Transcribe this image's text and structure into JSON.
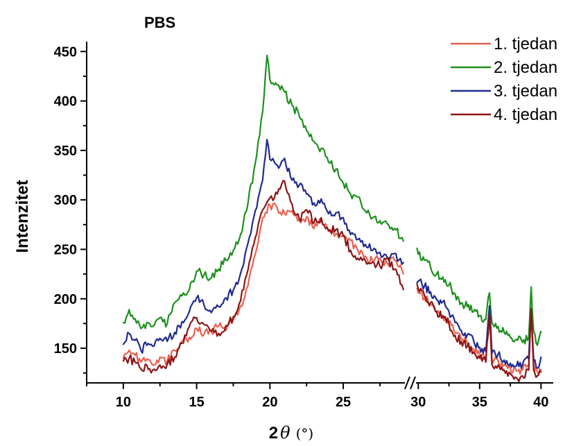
{
  "chart_data": {
    "type": "line",
    "title": "PBS",
    "xlabel_main": "2",
    "xlabel_theta": "θ",
    "xlabel_unit": "(°)",
    "ylabel": "Intenzitet",
    "ylim": [
      115,
      460
    ],
    "x_segments": [
      {
        "range": [
          7.5,
          29.3
        ],
        "ticks": [
          10,
          15,
          20,
          25
        ]
      },
      {
        "range": [
          29.7,
          41
        ],
        "ticks": [
          30,
          35,
          40
        ]
      }
    ],
    "x_ticks": [
      "10",
      "15",
      "20",
      "25",
      "30",
      "35",
      "40"
    ],
    "y_ticks": [
      "150",
      "200",
      "250",
      "300",
      "350",
      "400",
      "450"
    ],
    "axis_break_after": 29.1,
    "legend_position": "top-right",
    "series": [
      {
        "name": "1. tjedan",
        "color": "#e8604f",
        "points": [
          [
            10,
            140
          ],
          [
            10.4,
            148
          ],
          [
            10.8,
            143
          ],
          [
            11.2,
            136
          ],
          [
            11.6,
            139
          ],
          [
            12,
            133
          ],
          [
            12.5,
            141
          ],
          [
            13,
            137
          ],
          [
            13.5,
            148
          ],
          [
            14,
            157
          ],
          [
            14.5,
            161
          ],
          [
            15,
            170
          ],
          [
            15.5,
            164
          ],
          [
            16,
            167
          ],
          [
            16.5,
            172
          ],
          [
            17,
            168
          ],
          [
            17.5,
            179
          ],
          [
            18,
            193
          ],
          [
            18.5,
            213
          ],
          [
            19,
            245
          ],
          [
            19.5,
            282
          ],
          [
            20,
            295
          ],
          [
            20.5,
            292
          ],
          [
            21,
            286
          ],
          [
            21.5,
            289
          ],
          [
            22,
            280
          ],
          [
            22.5,
            283
          ],
          [
            23,
            271
          ],
          [
            23.5,
            279
          ],
          [
            24,
            268
          ],
          [
            24.5,
            266
          ],
          [
            25,
            263
          ],
          [
            25.5,
            259
          ],
          [
            26,
            249
          ],
          [
            26.5,
            243
          ],
          [
            27,
            238
          ],
          [
            27.5,
            241
          ],
          [
            28,
            236
          ],
          [
            28.5,
            239
          ],
          [
            29,
            229
          ],
          [
            30,
            206
          ],
          [
            30.5,
            201
          ],
          [
            31,
            194
          ],
          [
            31.5,
            186
          ],
          [
            32,
            181
          ],
          [
            32.5,
            177
          ],
          [
            33,
            165
          ],
          [
            33.5,
            159
          ],
          [
            34,
            155
          ],
          [
            34.5,
            149
          ],
          [
            35,
            144
          ],
          [
            35.5,
            139
          ],
          [
            35.8,
            183
          ],
          [
            36,
            139
          ],
          [
            36.5,
            138
          ],
          [
            37,
            133
          ],
          [
            37.5,
            130
          ],
          [
            38,
            127
          ],
          [
            38.5,
            128
          ],
          [
            39,
            132
          ],
          [
            39.2,
            185
          ],
          [
            39.4,
            134
          ],
          [
            39.7,
            126
          ],
          [
            40,
            128
          ]
        ]
      },
      {
        "name": "2. tjedan",
        "color": "#1d8f1d",
        "points": [
          [
            10,
            176
          ],
          [
            10.4,
            189
          ],
          [
            10.8,
            180
          ],
          [
            11.2,
            170
          ],
          [
            11.6,
            176
          ],
          [
            12,
            172
          ],
          [
            12.5,
            181
          ],
          [
            13,
            175
          ],
          [
            13.5,
            196
          ],
          [
            14,
            203
          ],
          [
            14.5,
            209
          ],
          [
            15,
            228
          ],
          [
            15.5,
            224
          ],
          [
            16,
            221
          ],
          [
            16.5,
            230
          ],
          [
            17,
            239
          ],
          [
            17.5,
            249
          ],
          [
            18,
            265
          ],
          [
            18.5,
            296
          ],
          [
            19,
            337
          ],
          [
            19.5,
            389
          ],
          [
            19.8,
            446
          ],
          [
            20,
            421
          ],
          [
            20.5,
            416
          ],
          [
            21,
            409
          ],
          [
            21.5,
            396
          ],
          [
            22,
            385
          ],
          [
            22.5,
            370
          ],
          [
            23,
            359
          ],
          [
            23.5,
            352
          ],
          [
            24,
            338
          ],
          [
            24.5,
            331
          ],
          [
            25,
            317
          ],
          [
            25.5,
            306
          ],
          [
            26,
            303
          ],
          [
            26.5,
            289
          ],
          [
            27,
            282
          ],
          [
            27.5,
            279
          ],
          [
            28,
            276
          ],
          [
            28.5,
            271
          ],
          [
            29,
            262
          ],
          [
            30,
            245
          ],
          [
            30.5,
            239
          ],
          [
            31,
            232
          ],
          [
            31.5,
            225
          ],
          [
            32,
            222
          ],
          [
            32.5,
            214
          ],
          [
            33,
            205
          ],
          [
            33.5,
            196
          ],
          [
            34,
            192
          ],
          [
            34.5,
            187
          ],
          [
            35,
            183
          ],
          [
            35.5,
            179
          ],
          [
            35.8,
            206
          ],
          [
            36,
            176
          ],
          [
            36.5,
            172
          ],
          [
            37,
            166
          ],
          [
            37.5,
            161
          ],
          [
            38,
            159
          ],
          [
            38.5,
            156
          ],
          [
            39,
            161
          ],
          [
            39.2,
            212
          ],
          [
            39.4,
            167
          ],
          [
            39.7,
            153
          ],
          [
            40,
            167
          ]
        ]
      },
      {
        "name": "3. tjedan",
        "color": "#1f2a8f",
        "points": [
          [
            10,
            154
          ],
          [
            10.4,
            165
          ],
          [
            10.8,
            158
          ],
          [
            11.2,
            148
          ],
          [
            11.6,
            153
          ],
          [
            12,
            152
          ],
          [
            12.5,
            160
          ],
          [
            13,
            157
          ],
          [
            13.5,
            166
          ],
          [
            14,
            177
          ],
          [
            14.5,
            187
          ],
          [
            15,
            201
          ],
          [
            15.5,
            194
          ],
          [
            16,
            186
          ],
          [
            16.5,
            192
          ],
          [
            17,
            201
          ],
          [
            17.5,
            209
          ],
          [
            18,
            226
          ],
          [
            18.5,
            256
          ],
          [
            19,
            289
          ],
          [
            19.5,
            320
          ],
          [
            19.8,
            361
          ],
          [
            20,
            341
          ],
          [
            20.5,
            335
          ],
          [
            21,
            342
          ],
          [
            21.5,
            320
          ],
          [
            22,
            315
          ],
          [
            22.5,
            306
          ],
          [
            23,
            297
          ],
          [
            23.5,
            301
          ],
          [
            24,
            286
          ],
          [
            24.5,
            287
          ],
          [
            25,
            282
          ],
          [
            25.5,
            265
          ],
          [
            26,
            260
          ],
          [
            26.5,
            255
          ],
          [
            27,
            249
          ],
          [
            27.5,
            247
          ],
          [
            28,
            242
          ],
          [
            28.5,
            246
          ],
          [
            29,
            235
          ],
          [
            30,
            218
          ],
          [
            30.5,
            213
          ],
          [
            31,
            207
          ],
          [
            31.5,
            199
          ],
          [
            32,
            197
          ],
          [
            32.5,
            187
          ],
          [
            33,
            176
          ],
          [
            33.5,
            168
          ],
          [
            34,
            164
          ],
          [
            34.5,
            158
          ],
          [
            35,
            151
          ],
          [
            35.5,
            147
          ],
          [
            35.8,
            193
          ],
          [
            36,
            145
          ],
          [
            36.5,
            144
          ],
          [
            37,
            138
          ],
          [
            37.5,
            135
          ],
          [
            38,
            132
          ],
          [
            38.5,
            134
          ],
          [
            39,
            139
          ],
          [
            39.2,
            189
          ],
          [
            39.4,
            138
          ],
          [
            39.7,
            130
          ],
          [
            40,
            141
          ]
        ]
      },
      {
        "name": "4. tjedan",
        "color": "#8b1414",
        "points": [
          [
            10,
            137
          ],
          [
            10.4,
            140
          ],
          [
            10.8,
            136
          ],
          [
            11.2,
            129
          ],
          [
            11.6,
            133
          ],
          [
            12,
            128
          ],
          [
            12.5,
            133
          ],
          [
            13,
            134
          ],
          [
            13.5,
            141
          ],
          [
            14,
            155
          ],
          [
            14.5,
            172
          ],
          [
            15,
            181
          ],
          [
            15.5,
            174
          ],
          [
            16,
            167
          ],
          [
            16.5,
            165
          ],
          [
            17,
            173
          ],
          [
            17.5,
            182
          ],
          [
            18,
            198
          ],
          [
            18.5,
            229
          ],
          [
            19,
            262
          ],
          [
            19.5,
            290
          ],
          [
            20,
            302
          ],
          [
            20.5,
            306
          ],
          [
            21,
            319
          ],
          [
            21.5,
            296
          ],
          [
            22,
            281
          ],
          [
            22.5,
            290
          ],
          [
            23,
            277
          ],
          [
            23.5,
            282
          ],
          [
            24,
            269
          ],
          [
            24.5,
            270
          ],
          [
            25,
            264
          ],
          [
            25.5,
            249
          ],
          [
            26,
            241
          ],
          [
            26.5,
            239
          ],
          [
            27,
            237
          ],
          [
            27.5,
            233
          ],
          [
            28,
            241
          ],
          [
            28.5,
            230
          ],
          [
            29,
            214
          ],
          [
            30,
            210
          ],
          [
            30.5,
            203
          ],
          [
            31,
            196
          ],
          [
            31.5,
            187
          ],
          [
            32,
            183
          ],
          [
            32.5,
            175
          ],
          [
            33,
            163
          ],
          [
            33.5,
            157
          ],
          [
            34,
            152
          ],
          [
            34.5,
            146
          ],
          [
            35,
            140
          ],
          [
            35.5,
            136
          ],
          [
            35.8,
            185
          ],
          [
            36,
            134
          ],
          [
            36.5,
            133
          ],
          [
            37,
            128
          ],
          [
            37.5,
            124
          ],
          [
            38,
            120
          ],
          [
            38.5,
            122
          ],
          [
            39,
            128
          ],
          [
            39.2,
            190
          ],
          [
            39.4,
            128
          ],
          [
            39.7,
            122
          ],
          [
            40,
            126
          ]
        ]
      }
    ]
  }
}
